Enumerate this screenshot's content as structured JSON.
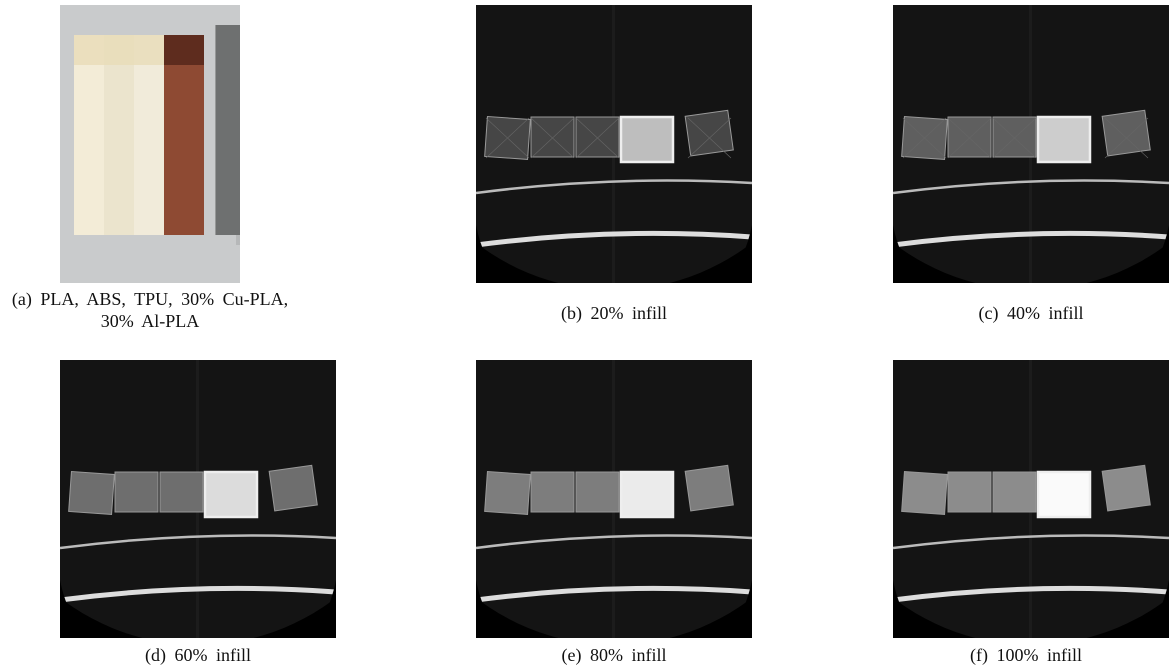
{
  "panels": [
    {
      "caption": "(a) PLA, ABS, TPU, 30% Cu-PLA, 30% Al-PLA"
    },
    {
      "caption": "(b) 20% infill"
    },
    {
      "caption": "(c) 40% infill"
    },
    {
      "caption": "(d) 60% infill"
    },
    {
      "caption": "(e) 80% infill"
    },
    {
      "caption": "(f) 100% infill"
    }
  ]
}
